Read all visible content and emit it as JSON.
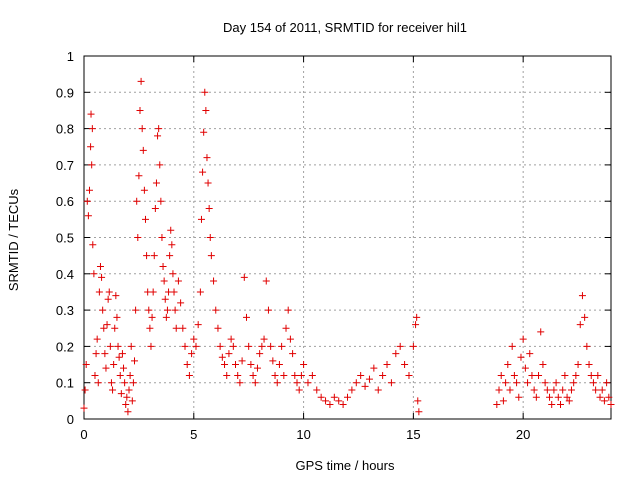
{
  "chart_data": {
    "type": "scatter",
    "title": "Day 154 of 2011, SRMTID for receiver hil1",
    "xlabel": "GPS time / hours",
    "ylabel": "SRMTID / TECUs",
    "xlim": [
      0,
      24
    ],
    "ylim": [
      0,
      1
    ],
    "x_ticks": [
      0,
      5,
      10,
      15,
      20
    ],
    "x_tick_labels": [
      "0",
      "5",
      "10",
      "15",
      "20"
    ],
    "y_ticks": [
      0,
      0.1,
      0.2,
      0.3,
      0.4,
      0.5,
      0.6,
      0.7,
      0.8,
      0.9,
      1
    ],
    "y_tick_labels": [
      "0",
      "0.1",
      "0.2",
      "0.3",
      "0.4",
      "0.5",
      "0.6",
      "0.7",
      "0.8",
      "0.9",
      "1"
    ],
    "grid": true,
    "marker": "plus",
    "color": "#e00000",
    "series": [
      {
        "name": "SRMTID",
        "points": [
          [
            0.0,
            0.03
          ],
          [
            0.05,
            0.08
          ],
          [
            0.1,
            0.15
          ],
          [
            0.15,
            0.6
          ],
          [
            0.2,
            0.56
          ],
          [
            0.25,
            0.63
          ],
          [
            0.3,
            0.75
          ],
          [
            0.32,
            0.84
          ],
          [
            0.35,
            0.7
          ],
          [
            0.38,
            0.8
          ],
          [
            0.4,
            0.48
          ],
          [
            0.45,
            0.4
          ],
          [
            0.5,
            0.12
          ],
          [
            0.55,
            0.18
          ],
          [
            0.6,
            0.22
          ],
          [
            0.65,
            0.1
          ],
          [
            0.7,
            0.35
          ],
          [
            0.75,
            0.42
          ],
          [
            0.8,
            0.39
          ],
          [
            0.85,
            0.3
          ],
          [
            0.9,
            0.25
          ],
          [
            0.95,
            0.18
          ],
          [
            1.0,
            0.14
          ],
          [
            1.05,
            0.26
          ],
          [
            1.1,
            0.33
          ],
          [
            1.15,
            0.35
          ],
          [
            1.2,
            0.2
          ],
          [
            1.25,
            0.1
          ],
          [
            1.3,
            0.08
          ],
          [
            1.35,
            0.15
          ],
          [
            1.4,
            0.25
          ],
          [
            1.45,
            0.34
          ],
          [
            1.5,
            0.28
          ],
          [
            1.55,
            0.2
          ],
          [
            1.6,
            0.17
          ],
          [
            1.65,
            0.12
          ],
          [
            1.7,
            0.07
          ],
          [
            1.75,
            0.18
          ],
          [
            1.8,
            0.14
          ],
          [
            1.85,
            0.1
          ],
          [
            1.9,
            0.04
          ],
          [
            1.95,
            0.06
          ],
          [
            2.0,
            0.02
          ],
          [
            2.05,
            0.08
          ],
          [
            2.1,
            0.12
          ],
          [
            2.15,
            0.2
          ],
          [
            2.2,
            0.05
          ],
          [
            2.25,
            0.1
          ],
          [
            2.3,
            0.16
          ],
          [
            2.35,
            0.3
          ],
          [
            2.4,
            0.6
          ],
          [
            2.45,
            0.5
          ],
          [
            2.5,
            0.67
          ],
          [
            2.55,
            0.85
          ],
          [
            2.6,
            0.93
          ],
          [
            2.65,
            0.8
          ],
          [
            2.7,
            0.74
          ],
          [
            2.75,
            0.63
          ],
          [
            2.8,
            0.55
          ],
          [
            2.85,
            0.45
          ],
          [
            2.9,
            0.35
          ],
          [
            2.95,
            0.3
          ],
          [
            3.0,
            0.25
          ],
          [
            3.05,
            0.2
          ],
          [
            3.1,
            0.28
          ],
          [
            3.15,
            0.35
          ],
          [
            3.2,
            0.45
          ],
          [
            3.25,
            0.58
          ],
          [
            3.3,
            0.65
          ],
          [
            3.35,
            0.78
          ],
          [
            3.4,
            0.8
          ],
          [
            3.45,
            0.7
          ],
          [
            3.5,
            0.6
          ],
          [
            3.55,
            0.5
          ],
          [
            3.6,
            0.42
          ],
          [
            3.65,
            0.38
          ],
          [
            3.7,
            0.33
          ],
          [
            3.75,
            0.28
          ],
          [
            3.8,
            0.3
          ],
          [
            3.85,
            0.35
          ],
          [
            3.9,
            0.45
          ],
          [
            3.95,
            0.52
          ],
          [
            4.0,
            0.48
          ],
          [
            4.05,
            0.4
          ],
          [
            4.1,
            0.35
          ],
          [
            4.15,
            0.3
          ],
          [
            4.2,
            0.25
          ],
          [
            4.3,
            0.38
          ],
          [
            4.4,
            0.32
          ],
          [
            4.5,
            0.25
          ],
          [
            4.6,
            0.2
          ],
          [
            4.7,
            0.15
          ],
          [
            4.8,
            0.12
          ],
          [
            4.9,
            0.18
          ],
          [
            5.0,
            0.22
          ],
          [
            5.1,
            0.2
          ],
          [
            5.2,
            0.26
          ],
          [
            5.3,
            0.35
          ],
          [
            5.35,
            0.55
          ],
          [
            5.4,
            0.68
          ],
          [
            5.45,
            0.79
          ],
          [
            5.5,
            0.9
          ],
          [
            5.55,
            0.85
          ],
          [
            5.6,
            0.72
          ],
          [
            5.65,
            0.65
          ],
          [
            5.7,
            0.58
          ],
          [
            5.75,
            0.5
          ],
          [
            5.8,
            0.45
          ],
          [
            5.9,
            0.38
          ],
          [
            6.0,
            0.3
          ],
          [
            6.1,
            0.25
          ],
          [
            6.2,
            0.2
          ],
          [
            6.3,
            0.17
          ],
          [
            6.4,
            0.15
          ],
          [
            6.5,
            0.12
          ],
          [
            6.6,
            0.18
          ],
          [
            6.7,
            0.22
          ],
          [
            6.8,
            0.2
          ],
          [
            6.9,
            0.15
          ],
          [
            7.0,
            0.12
          ],
          [
            7.1,
            0.1
          ],
          [
            7.2,
            0.16
          ],
          [
            7.3,
            0.39
          ],
          [
            7.4,
            0.28
          ],
          [
            7.5,
            0.2
          ],
          [
            7.6,
            0.15
          ],
          [
            7.7,
            0.12
          ],
          [
            7.8,
            0.1
          ],
          [
            7.9,
            0.14
          ],
          [
            8.0,
            0.18
          ],
          [
            8.1,
            0.2
          ],
          [
            8.2,
            0.22
          ],
          [
            8.3,
            0.38
          ],
          [
            8.4,
            0.3
          ],
          [
            8.5,
            0.2
          ],
          [
            8.6,
            0.16
          ],
          [
            8.7,
            0.12
          ],
          [
            8.8,
            0.1
          ],
          [
            8.9,
            0.15
          ],
          [
            9.0,
            0.2
          ],
          [
            9.1,
            0.12
          ],
          [
            9.2,
            0.25
          ],
          [
            9.3,
            0.3
          ],
          [
            9.4,
            0.22
          ],
          [
            9.5,
            0.18
          ],
          [
            9.6,
            0.12
          ],
          [
            9.7,
            0.1
          ],
          [
            9.8,
            0.08
          ],
          [
            9.9,
            0.12
          ],
          [
            10.0,
            0.15
          ],
          [
            10.2,
            0.1
          ],
          [
            10.4,
            0.12
          ],
          [
            10.6,
            0.08
          ],
          [
            10.8,
            0.06
          ],
          [
            11.0,
            0.05
          ],
          [
            11.2,
            0.04
          ],
          [
            11.4,
            0.06
          ],
          [
            11.6,
            0.05
          ],
          [
            11.8,
            0.04
          ],
          [
            12.0,
            0.06
          ],
          [
            12.2,
            0.08
          ],
          [
            12.4,
            0.1
          ],
          [
            12.6,
            0.12
          ],
          [
            12.8,
            0.09
          ],
          [
            13.0,
            0.11
          ],
          [
            13.2,
            0.14
          ],
          [
            13.4,
            0.08
          ],
          [
            13.6,
            0.12
          ],
          [
            13.8,
            0.15
          ],
          [
            14.0,
            0.1
          ],
          [
            14.2,
            0.18
          ],
          [
            14.4,
            0.2
          ],
          [
            14.6,
            0.15
          ],
          [
            14.8,
            0.12
          ],
          [
            15.0,
            0.2
          ],
          [
            15.1,
            0.26
          ],
          [
            15.15,
            0.28
          ],
          [
            15.2,
            0.05
          ],
          [
            15.25,
            0.02
          ],
          [
            18.8,
            0.04
          ],
          [
            18.9,
            0.08
          ],
          [
            19.0,
            0.12
          ],
          [
            19.1,
            0.05
          ],
          [
            19.2,
            0.1
          ],
          [
            19.3,
            0.15
          ],
          [
            19.4,
            0.08
          ],
          [
            19.5,
            0.2
          ],
          [
            19.6,
            0.12
          ],
          [
            19.7,
            0.1
          ],
          [
            19.8,
            0.06
          ],
          [
            19.9,
            0.17
          ],
          [
            20.0,
            0.22
          ],
          [
            20.1,
            0.14
          ],
          [
            20.2,
            0.1
          ],
          [
            20.3,
            0.18
          ],
          [
            20.4,
            0.12
          ],
          [
            20.5,
            0.08
          ],
          [
            20.6,
            0.06
          ],
          [
            20.7,
            0.12
          ],
          [
            20.8,
            0.24
          ],
          [
            20.9,
            0.15
          ],
          [
            21.0,
            0.1
          ],
          [
            21.1,
            0.08
          ],
          [
            21.2,
            0.06
          ],
          [
            21.3,
            0.04
          ],
          [
            21.4,
            0.08
          ],
          [
            21.5,
            0.1
          ],
          [
            21.6,
            0.06
          ],
          [
            21.7,
            0.04
          ],
          [
            21.8,
            0.08
          ],
          [
            21.9,
            0.12
          ],
          [
            22.0,
            0.06
          ],
          [
            22.1,
            0.05
          ],
          [
            22.2,
            0.08
          ],
          [
            22.3,
            0.1
          ],
          [
            22.4,
            0.12
          ],
          [
            22.5,
            0.15
          ],
          [
            22.6,
            0.26
          ],
          [
            22.7,
            0.34
          ],
          [
            22.8,
            0.28
          ],
          [
            22.9,
            0.2
          ],
          [
            23.0,
            0.15
          ],
          [
            23.1,
            0.12
          ],
          [
            23.2,
            0.1
          ],
          [
            23.3,
            0.08
          ],
          [
            23.4,
            0.12
          ],
          [
            23.5,
            0.06
          ],
          [
            23.6,
            0.08
          ],
          [
            23.7,
            0.05
          ],
          [
            23.8,
            0.1
          ],
          [
            23.9,
            0.06
          ],
          [
            24.0,
            0.04
          ]
        ]
      }
    ]
  }
}
